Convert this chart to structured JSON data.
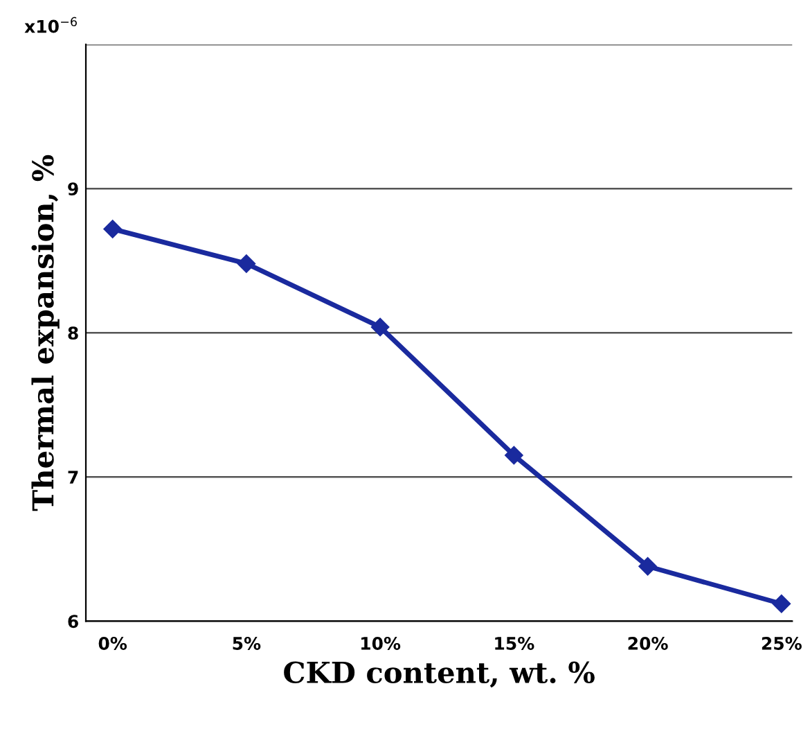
{
  "chart_data": {
    "type": "line",
    "xlabel": "CKD content, wt. %",
    "ylabel": "Thermal expansion, %",
    "categories": [
      "0%",
      "5%",
      "10%",
      "15%",
      "20%",
      "25%"
    ],
    "series": [
      {
        "color": "#1a2a9e",
        "values": [
          8.72,
          8.48,
          8.04,
          7.15,
          6.38,
          6.12
        ]
      }
    ],
    "ylim": [
      6,
      10
    ],
    "yticks": [
      6,
      7,
      8,
      9,
      {
        "value": 10,
        "label": null
      }
    ],
    "grid": "y",
    "marker": "diamond",
    "line_style": "solid",
    "legend": false,
    "annotations": [
      "x10$^{−6}$"
    ]
  }
}
